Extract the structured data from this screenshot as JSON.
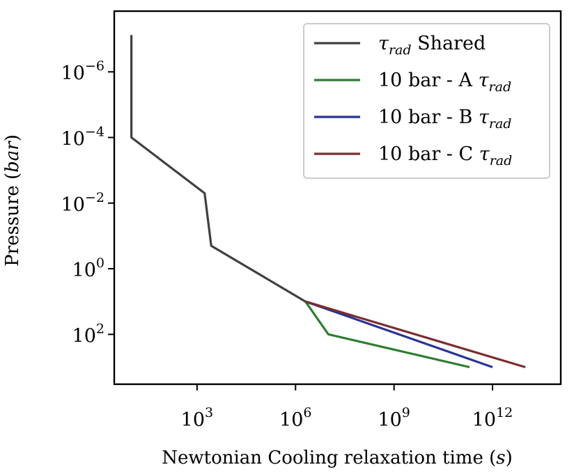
{
  "chart_data": {
    "type": "line",
    "xscale": "log",
    "yscale": "log",
    "yinverted": true,
    "xlabel": "Newtonian Cooling relaxation time",
    "xlabel_unit": "s",
    "ylabel": "Pressure",
    "ylabel_unit": "bar",
    "xlim": [
      3.0,
      120000000000000.0
    ],
    "ylim": [
      1.41e-08,
      3310
    ],
    "xticks": [
      {
        "value": 1000,
        "base": "10",
        "exp": "3"
      },
      {
        "value": 1000000,
        "base": "10",
        "exp": "6"
      },
      {
        "value": 1000000000,
        "base": "10",
        "exp": "9"
      },
      {
        "value": 1000000000000,
        "base": "10",
        "exp": "12"
      }
    ],
    "yticks": [
      {
        "value": 1e-06,
        "base": "10",
        "exp": "−6"
      },
      {
        "value": 0.0001,
        "base": "10",
        "exp": "−4"
      },
      {
        "value": 0.01,
        "base": "10",
        "exp": "−2"
      },
      {
        "value": 1,
        "base": "10",
        "exp": "0"
      },
      {
        "value": 100,
        "base": "10",
        "exp": "2"
      }
    ],
    "legend_position": "top-right",
    "series": [
      {
        "name": "τrad Shared",
        "legend_symbol": "τ",
        "legend_sub": "rad",
        "legend_text": " Shared",
        "color": "#404040",
        "points": [
          [
            10,
            7.5e-08
          ],
          [
            10,
            0.0001
          ],
          [
            1700,
            0.005
          ],
          [
            2700,
            0.2
          ],
          [
            2000000,
            10
          ]
        ]
      },
      {
        "name": "10 bar - A τrad",
        "legend_text": "10 bar - A ",
        "legend_symbol": "τ",
        "legend_sub": "rad",
        "color": "#2e7d32",
        "points": [
          [
            2000000,
            10
          ],
          [
            10000000,
            100
          ],
          [
            200000000000,
            1000
          ]
        ]
      },
      {
        "name": "10 bar - B τrad",
        "legend_text": "10 bar - B ",
        "legend_symbol": "τ",
        "legend_sub": "rad",
        "color": "#283593",
        "points": [
          [
            2000000,
            10
          ],
          [
            1000000000000,
            1000
          ]
        ]
      },
      {
        "name": "10 bar - C τrad",
        "legend_text": "10 bar - C ",
        "legend_symbol": "τ",
        "legend_sub": "rad",
        "color": "#7b2c2c",
        "points": [
          [
            2000000,
            10
          ],
          [
            10000000000000,
            1000
          ]
        ]
      }
    ]
  }
}
